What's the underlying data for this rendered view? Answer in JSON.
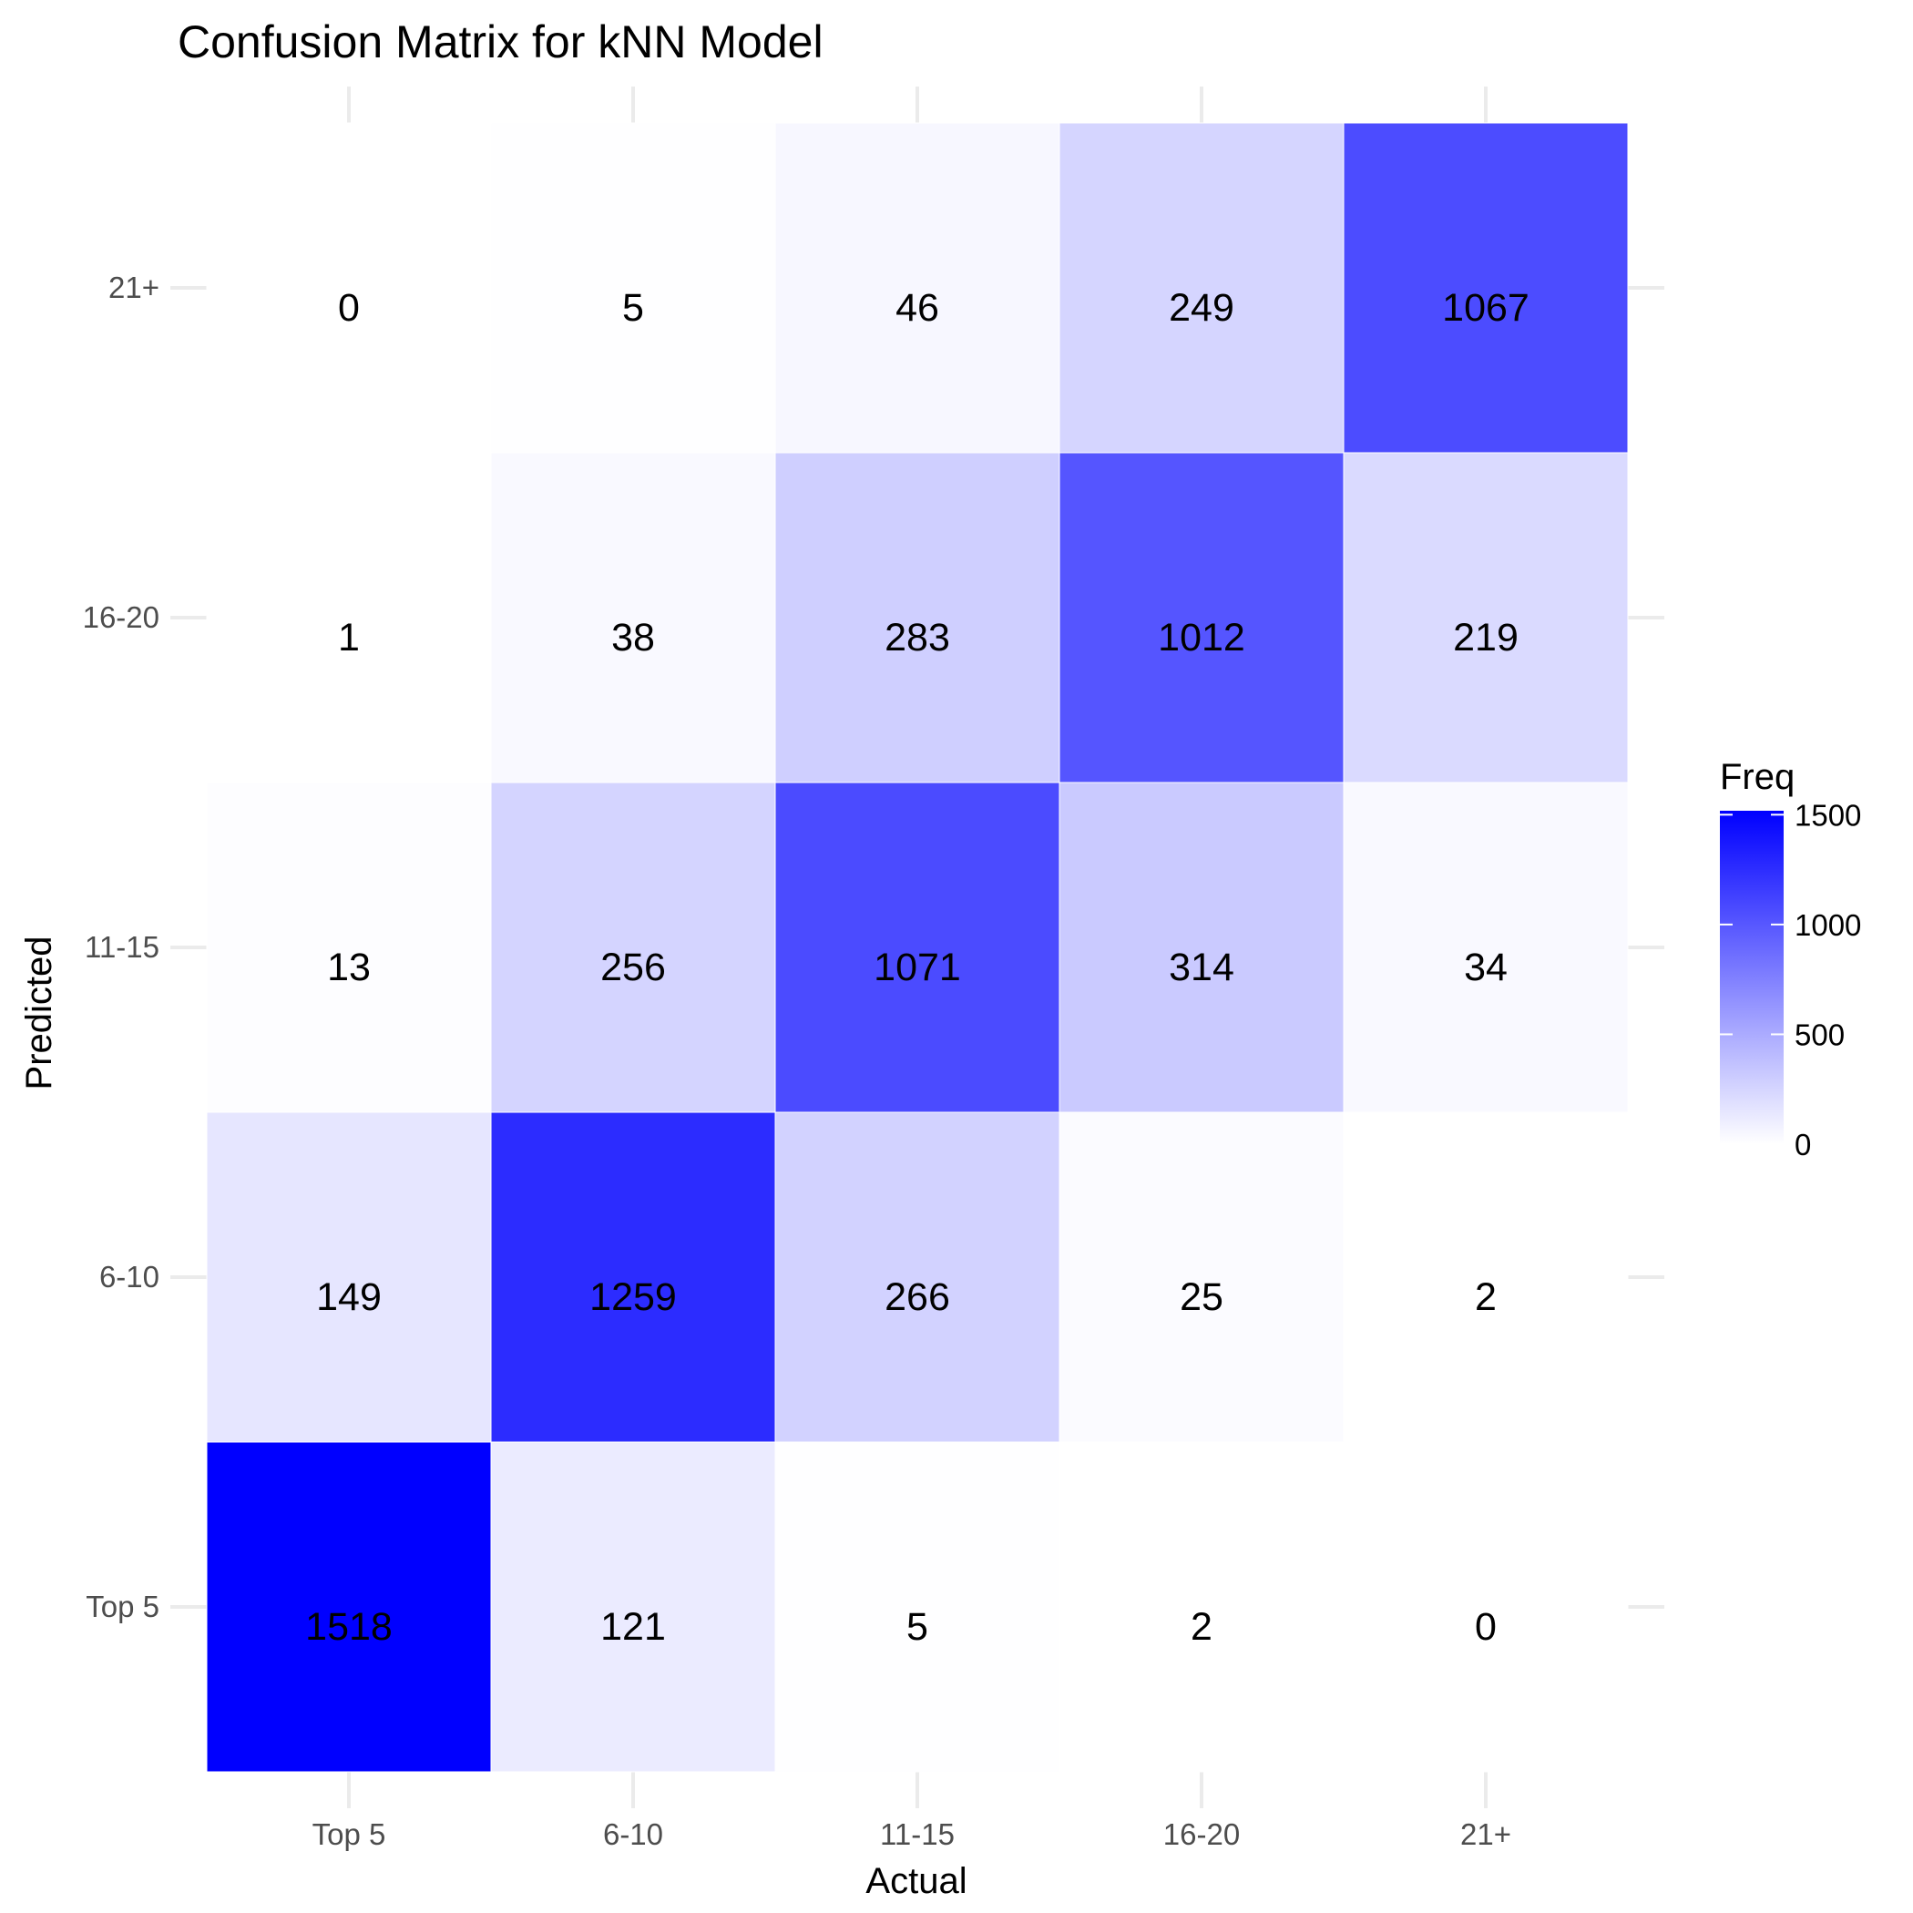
{
  "chart_data": {
    "type": "heatmap",
    "title": "Confusion Matrix for kNN Model",
    "xlabel": "Actual",
    "ylabel": "Predicted",
    "x_categories": [
      "Top 5",
      "6-10",
      "11-15",
      "16-20",
      "21+"
    ],
    "y_categories": [
      "Top 5",
      "6-10",
      "11-15",
      "16-20",
      "21+"
    ],
    "cells": [
      {
        "actual": "Top 5",
        "predicted": "Top 5",
        "value": 1518
      },
      {
        "actual": "Top 5",
        "predicted": "6-10",
        "value": 149
      },
      {
        "actual": "Top 5",
        "predicted": "11-15",
        "value": 13
      },
      {
        "actual": "Top 5",
        "predicted": "16-20",
        "value": 1
      },
      {
        "actual": "Top 5",
        "predicted": "21+",
        "value": 0
      },
      {
        "actual": "6-10",
        "predicted": "Top 5",
        "value": 121
      },
      {
        "actual": "6-10",
        "predicted": "6-10",
        "value": 1259
      },
      {
        "actual": "6-10",
        "predicted": "11-15",
        "value": 256
      },
      {
        "actual": "6-10",
        "predicted": "16-20",
        "value": 38
      },
      {
        "actual": "6-10",
        "predicted": "21+",
        "value": 5
      },
      {
        "actual": "11-15",
        "predicted": "Top 5",
        "value": 5
      },
      {
        "actual": "11-15",
        "predicted": "6-10",
        "value": 266
      },
      {
        "actual": "11-15",
        "predicted": "11-15",
        "value": 1071
      },
      {
        "actual": "11-15",
        "predicted": "16-20",
        "value": 283
      },
      {
        "actual": "11-15",
        "predicted": "21+",
        "value": 46
      },
      {
        "actual": "16-20",
        "predicted": "Top 5",
        "value": 2
      },
      {
        "actual": "16-20",
        "predicted": "6-10",
        "value": 25
      },
      {
        "actual": "16-20",
        "predicted": "11-15",
        "value": 314
      },
      {
        "actual": "16-20",
        "predicted": "16-20",
        "value": 1012
      },
      {
        "actual": "16-20",
        "predicted": "21+",
        "value": 249
      },
      {
        "actual": "21+",
        "predicted": "Top 5",
        "value": 0
      },
      {
        "actual": "21+",
        "predicted": "6-10",
        "value": 2
      },
      {
        "actual": "21+",
        "predicted": "11-15",
        "value": 34
      },
      {
        "actual": "21+",
        "predicted": "16-20",
        "value": 219
      },
      {
        "actual": "21+",
        "predicted": "21+",
        "value": 1067
      }
    ],
    "legend": {
      "title": "Freq",
      "ticks": [
        0,
        500,
        1000,
        1500
      ],
      "range": [
        0,
        1518
      ],
      "color_low": "#ffffff",
      "color_high": "#0000ff"
    },
    "grid": true,
    "legend_position": "right"
  }
}
